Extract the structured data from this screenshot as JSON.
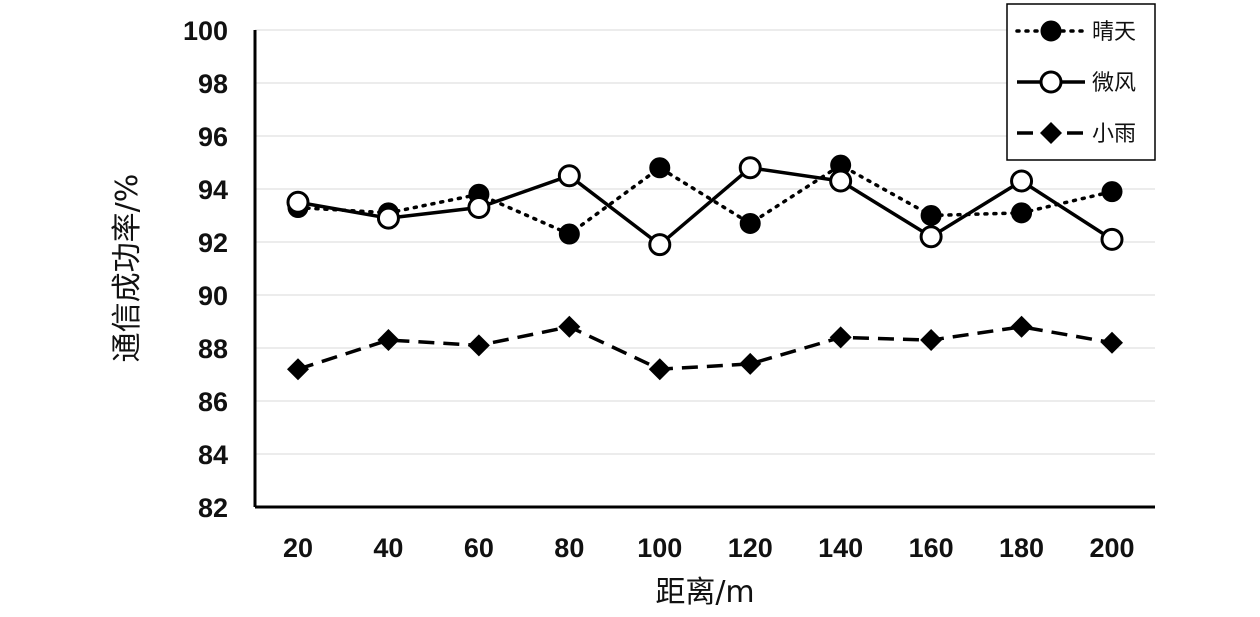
{
  "chart_data": {
    "type": "line",
    "xlabel": "距离/m",
    "ylabel": "通信成功率/%",
    "x": [
      20,
      40,
      60,
      80,
      100,
      120,
      140,
      160,
      180,
      200
    ],
    "y_ticks": [
      82,
      84,
      86,
      88,
      90,
      92,
      94,
      96,
      98,
      100
    ],
    "ylim": [
      82,
      100
    ],
    "grid": "horizontal",
    "legend_position": "top-right",
    "series": [
      {
        "name": "晴天",
        "line_style": "dotted",
        "marker": "filled-circle",
        "values": [
          93.3,
          93.1,
          93.8,
          92.3,
          94.8,
          92.7,
          94.9,
          93.0,
          93.1,
          93.9
        ]
      },
      {
        "name": "微风",
        "line_style": "solid",
        "marker": "open-circle",
        "values": [
          93.5,
          92.9,
          93.3,
          94.5,
          91.9,
          94.8,
          94.3,
          92.2,
          94.3,
          92.1
        ]
      },
      {
        "name": "小雨",
        "line_style": "dashed",
        "marker": "filled-diamond",
        "values": [
          87.2,
          88.3,
          88.1,
          88.8,
          87.2,
          87.4,
          88.4,
          88.3,
          88.8,
          88.2
        ]
      }
    ]
  }
}
